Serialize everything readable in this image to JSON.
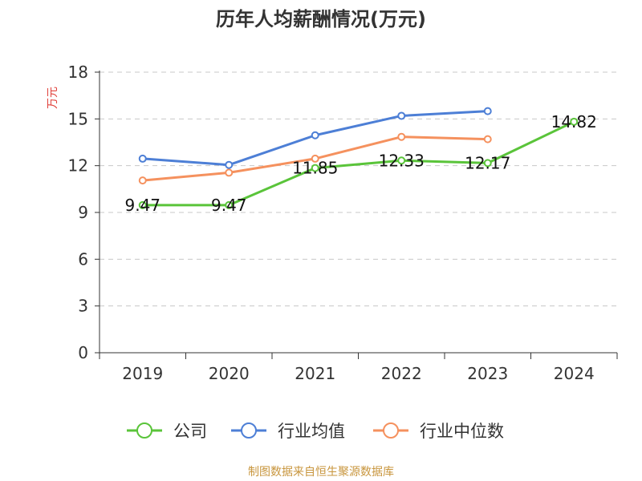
{
  "title": "历年人均薪酬情况(万元)",
  "source": "制图数据来自恒生聚源数据库",
  "colors": {
    "axis": "#333333",
    "grid": "#c8c8c8",
    "ylabel": "#e0413b",
    "source": "#c8963e"
  },
  "chart_data": {
    "type": "line",
    "title": "历年人均薪酬情况(万元)",
    "ylabel": "万元",
    "xlabel": "",
    "categories": [
      "2019",
      "2020",
      "2021",
      "2022",
      "2023",
      "2024"
    ],
    "ylim": [
      0,
      18
    ],
    "yticks": [
      "0",
      "3",
      "6",
      "9",
      "12",
      "15",
      "18"
    ],
    "grid": "horizontal-dashed",
    "legend_position": "bottom",
    "series": [
      {
        "name": "公司",
        "color": "#5ac43a",
        "values": [
          9.47,
          9.47,
          11.85,
          12.33,
          12.17,
          14.82
        ],
        "labels": [
          "9.47",
          "9.47",
          "11.85",
          "12.33",
          "12.17",
          "14.82"
        ]
      },
      {
        "name": "行业均值",
        "color": "#4d7fd6",
        "values": [
          12.45,
          12.05,
          13.95,
          15.2,
          15.5,
          null
        ],
        "labels": []
      },
      {
        "name": "行业中位数",
        "color": "#f5915e",
        "values": [
          11.05,
          11.55,
          12.45,
          13.85,
          13.7,
          null
        ],
        "labels": []
      }
    ]
  }
}
